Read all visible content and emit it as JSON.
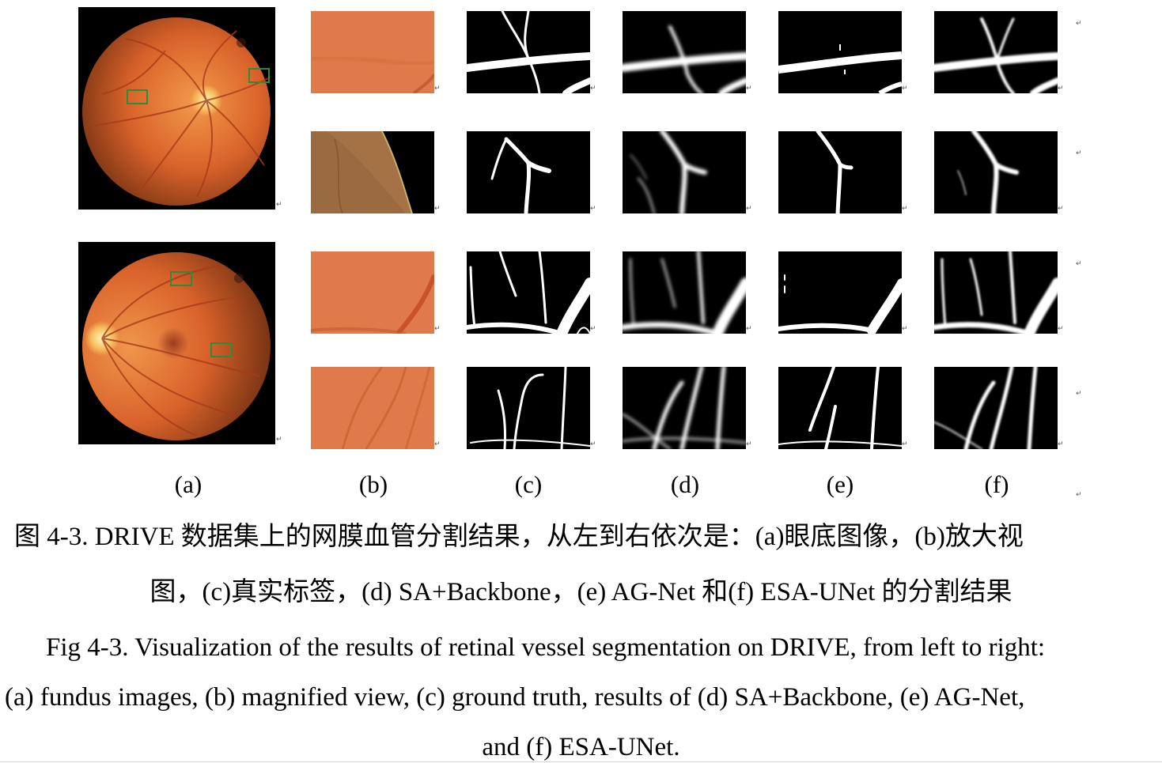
{
  "panel_labels": [
    "(a)",
    "(b)",
    "(c)",
    "(d)",
    "(e)",
    "(f)"
  ],
  "caption_cn_line1": "图 4-3. DRIVE 数据集上的网膜血管分割结果，从左到右依次是：(a)眼底图像，(b)放大视",
  "caption_cn_line2": "图，(c)真实标签，(d) SA+Backbone，(e) AG-Net 和(f) ESA-UNet 的分割结果",
  "caption_en_line1": "Fig 4-3. Visualization of the results of retinal vessel segmentation on DRIVE, from left to right:",
  "caption_en_line2": "(a) fundus images, (b) magnified view, (c) ground truth, results of (d) SA+Backbone, (e) AG-Net,",
  "caption_en_line3": "and (f) ESA-UNet.",
  "colors": {
    "fundus_orange": "#d9622a",
    "crop_orange": "#e0794a",
    "roi_box": "#2e8b3a",
    "vessel_white": "#ffffff",
    "background_black": "#000000"
  }
}
